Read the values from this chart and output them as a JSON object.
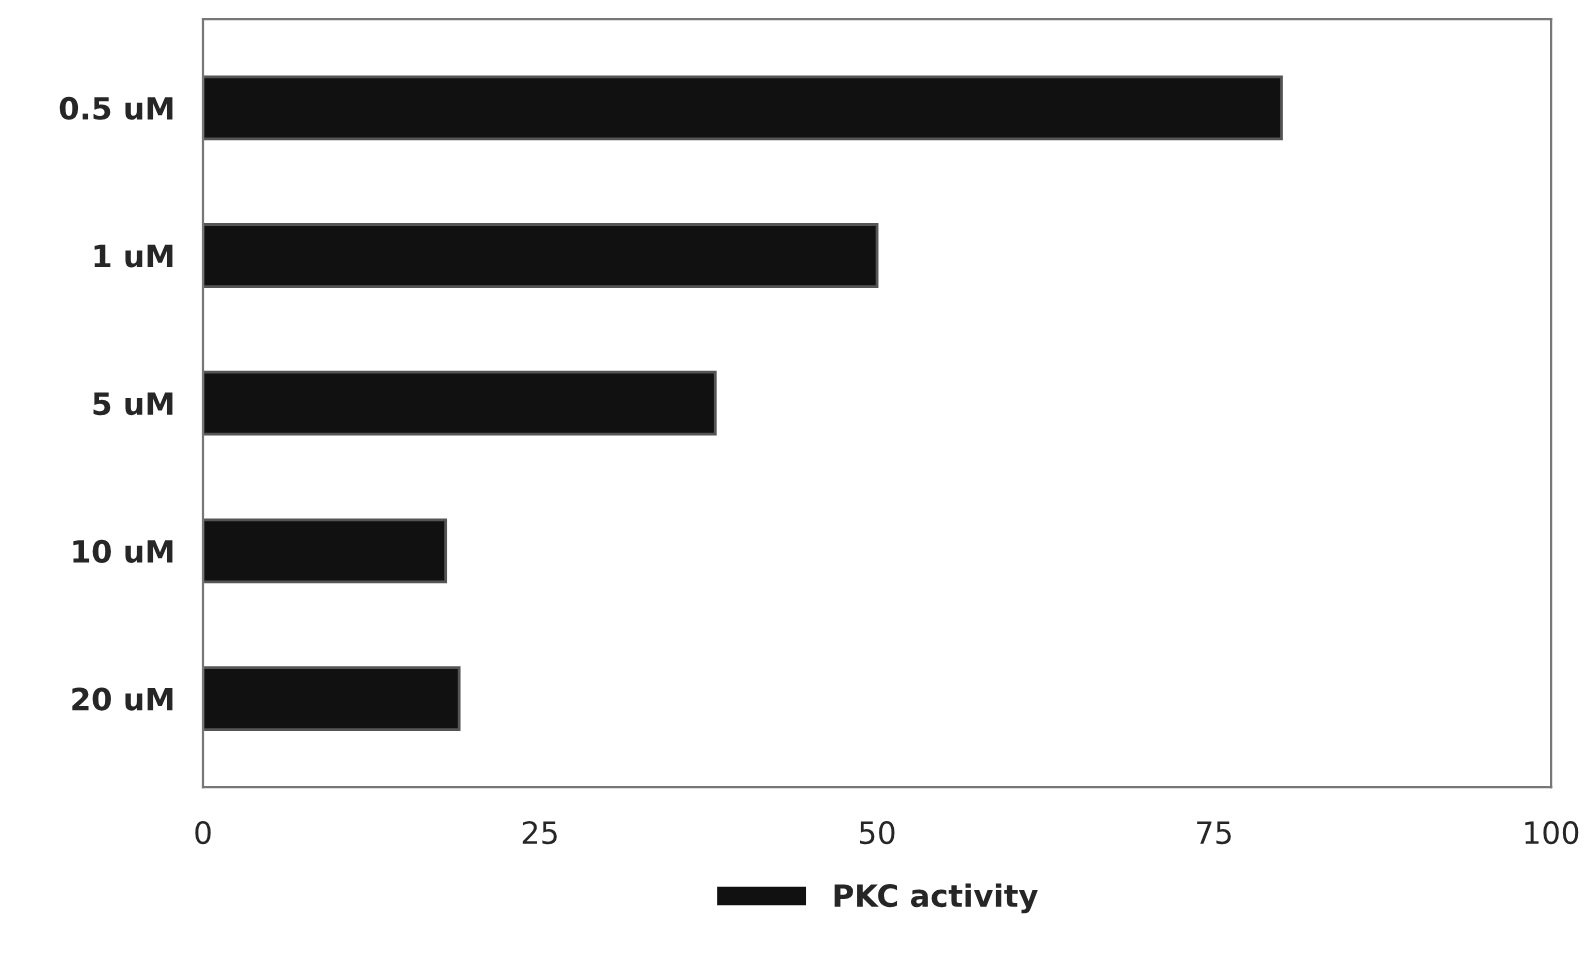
{
  "chart_data": {
    "type": "bar",
    "orientation": "horizontal",
    "categories": [
      "0.5 uM",
      "1 uM",
      "5 uM",
      "10 uM",
      "20 uM"
    ],
    "series": [
      {
        "name": "PKC activity",
        "color": "#111111",
        "values": [
          80,
          50,
          38,
          18,
          19
        ]
      }
    ],
    "xlim": [
      0,
      100
    ],
    "xticks": [
      0,
      25,
      50,
      75,
      100
    ],
    "grid": false,
    "legend": "bottom"
  }
}
